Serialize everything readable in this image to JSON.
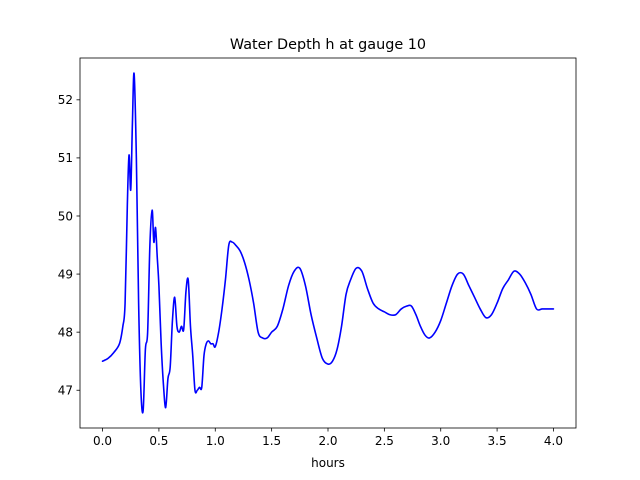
{
  "chart_data": {
    "type": "line",
    "title": "Water Depth h at gauge 10",
    "xlabel": "hours",
    "ylabel": "",
    "xlim": [
      -0.2,
      4.2
    ],
    "ylim": [
      46.35,
      52.72
    ],
    "xticks": [
      0.0,
      0.5,
      1.0,
      1.5,
      2.0,
      2.5,
      3.0,
      3.5,
      4.0
    ],
    "xtick_labels": [
      "0.0",
      "0.5",
      "1.0",
      "1.5",
      "2.0",
      "2.5",
      "3.0",
      "3.5",
      "4.0"
    ],
    "yticks": [
      47,
      48,
      49,
      50,
      51,
      52
    ],
    "ytick_labels": [
      "47",
      "48",
      "49",
      "50",
      "51",
      "52"
    ],
    "grid": false,
    "series": [
      {
        "color": "#0000ff",
        "x": [
          0.0,
          0.05,
          0.1,
          0.15,
          0.18,
          0.2,
          0.22,
          0.235,
          0.25,
          0.265,
          0.28,
          0.3,
          0.32,
          0.34,
          0.36,
          0.38,
          0.4,
          0.42,
          0.44,
          0.455,
          0.47,
          0.485,
          0.5,
          0.52,
          0.54,
          0.56,
          0.58,
          0.6,
          0.62,
          0.64,
          0.66,
          0.68,
          0.7,
          0.72,
          0.74,
          0.76,
          0.78,
          0.8,
          0.82,
          0.84,
          0.86,
          0.88,
          0.9,
          0.92,
          0.94,
          0.96,
          0.98,
          1.0,
          1.03,
          1.06,
          1.09,
          1.12,
          1.15,
          1.18,
          1.22,
          1.26,
          1.3,
          1.34,
          1.38,
          1.42,
          1.46,
          1.5,
          1.55,
          1.6,
          1.65,
          1.7,
          1.75,
          1.8,
          1.85,
          1.9,
          1.95,
          2.0,
          2.04,
          2.08,
          2.12,
          2.16,
          2.2,
          2.25,
          2.3,
          2.35,
          2.4,
          2.45,
          2.5,
          2.55,
          2.6,
          2.65,
          2.7,
          2.74,
          2.78,
          2.82,
          2.86,
          2.9,
          2.95,
          3.0,
          3.05,
          3.1,
          3.15,
          3.2,
          3.25,
          3.3,
          3.35,
          3.4,
          3.45,
          3.5,
          3.55,
          3.6,
          3.65,
          3.7,
          3.75,
          3.8,
          3.85,
          3.9,
          3.95,
          4.0
        ],
        "values": [
          47.5,
          47.55,
          47.65,
          47.8,
          48.1,
          48.5,
          50.2,
          51.05,
          50.45,
          51.6,
          52.45,
          51.0,
          48.5,
          47.0,
          46.65,
          47.7,
          48.0,
          49.5,
          50.1,
          49.55,
          49.8,
          49.3,
          48.8,
          47.8,
          47.1,
          46.7,
          47.2,
          47.4,
          48.2,
          48.6,
          48.1,
          48.0,
          48.1,
          48.05,
          48.7,
          48.9,
          48.1,
          47.6,
          47.0,
          47.0,
          47.05,
          47.05,
          47.6,
          47.8,
          47.85,
          47.8,
          47.8,
          47.75,
          48.0,
          48.4,
          48.9,
          49.5,
          49.55,
          49.5,
          49.4,
          49.2,
          48.9,
          48.5,
          48.0,
          47.9,
          47.9,
          48.0,
          48.1,
          48.4,
          48.8,
          49.05,
          49.1,
          48.8,
          48.3,
          47.9,
          47.55,
          47.45,
          47.5,
          47.7,
          48.1,
          48.65,
          48.9,
          49.1,
          49.05,
          48.75,
          48.5,
          48.4,
          48.35,
          48.3,
          48.3,
          48.4,
          48.45,
          48.45,
          48.3,
          48.1,
          47.95,
          47.9,
          48.0,
          48.2,
          48.5,
          48.8,
          49.0,
          49.0,
          48.8,
          48.6,
          48.4,
          48.25,
          48.3,
          48.5,
          48.75,
          48.9,
          49.05,
          49.0,
          48.85,
          48.65,
          48.4,
          48.4,
          48.4,
          48.4
        ]
      }
    ]
  }
}
